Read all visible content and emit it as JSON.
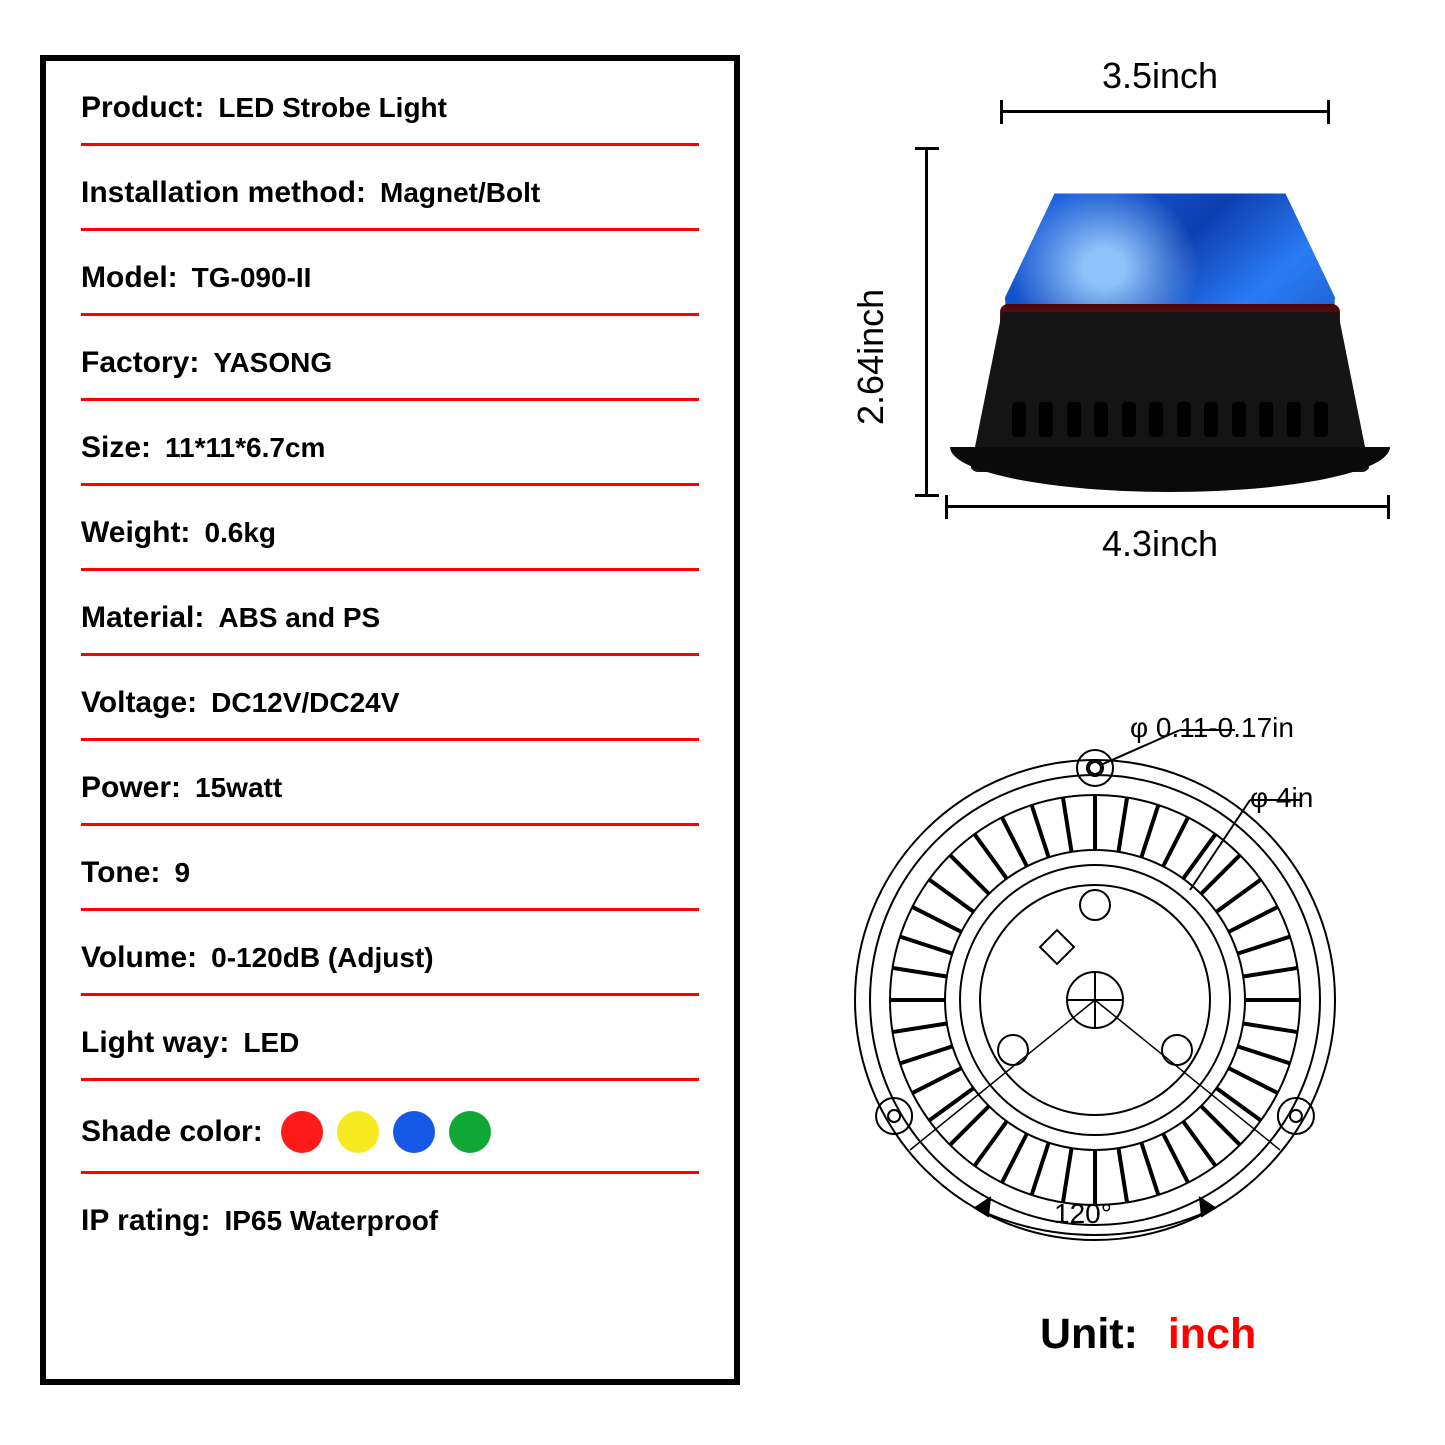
{
  "spec_table": {
    "border_color": "#000000",
    "underline_color": "#ff0000",
    "label_fontsize": 30,
    "value_fontsize": 28,
    "rows": [
      {
        "label": "Product:",
        "value": "LED Strobe Light"
      },
      {
        "label": "Installation method:",
        "value": "Magnet/Bolt"
      },
      {
        "label": "Model:",
        "value": "TG-090-II"
      },
      {
        "label": "Factory:",
        "value": "YASONG"
      },
      {
        "label": "Size:",
        "value": "11*11*6.7cm"
      },
      {
        "label": "Weight:",
        "value": "0.6kg"
      },
      {
        "label": "Material:",
        "value": "ABS and PS"
      },
      {
        "label": "Voltage:",
        "value": "DC12V/DC24V"
      },
      {
        "label": "Power:",
        "value": "15watt"
      },
      {
        "label": "Tone:",
        "value": "9"
      },
      {
        "label": "Volume:",
        "value": "0-120dB (Adjust)"
      },
      {
        "label": "Light way:",
        "value": "LED"
      },
      {
        "label": "Shade color:",
        "value": "",
        "swatches": [
          "#ff1a1a",
          "#f6e91f",
          "#1557e6",
          "#0fa835"
        ]
      },
      {
        "label": "IP rating:",
        "value": "IP65 Waterproof"
      }
    ]
  },
  "product_dims": {
    "top": "3.5inch",
    "side": "2.64inch",
    "bottom": "4.3inch",
    "label_fontsize": 36,
    "dome_color": "#1557e6",
    "body_color": "#141414",
    "ring_color": "#7e1216"
  },
  "tech_drawing": {
    "hole_dia": "φ 0.11-0.17in",
    "inner_dia": "φ 4in",
    "angle": "120°",
    "label_fontsize": 28,
    "stroke_color": "#000000",
    "stroke_width": 2
  },
  "unit_note": {
    "label": "Unit:",
    "value": "inch",
    "value_color": "#ff0000",
    "fontsize": 43
  }
}
